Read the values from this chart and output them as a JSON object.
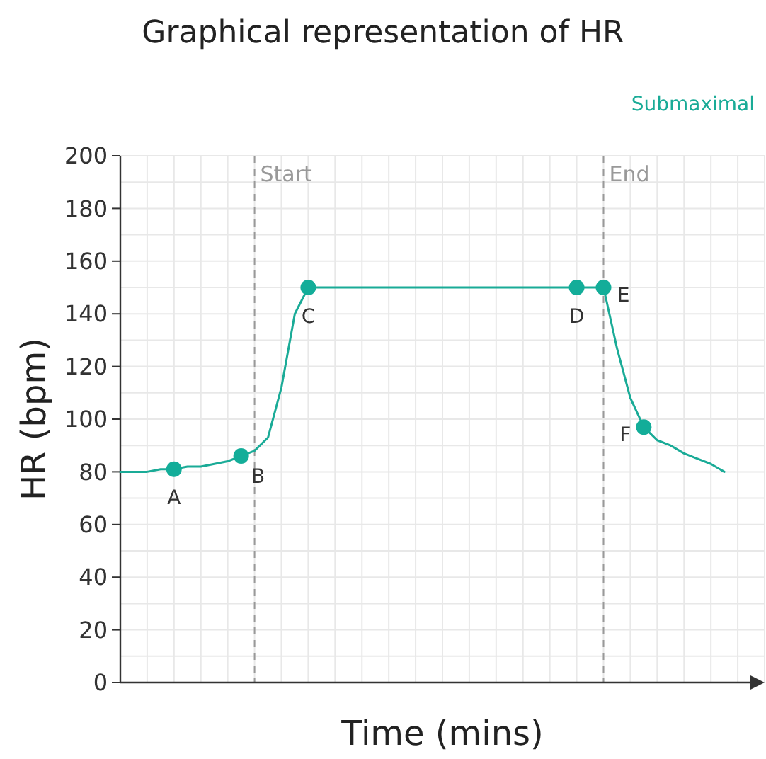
{
  "chart_data": {
    "type": "line",
    "title": "Graphical representation of HR",
    "xlabel": "Time (mins)",
    "ylabel": "HR (bpm)",
    "categories": [
      null,
      null,
      null,
      null,
      null,
      null,
      null,
      null,
      null,
      null,
      null,
      null,
      null,
      null,
      null,
      null,
      null,
      null,
      null,
      null,
      null,
      null,
      null,
      null,
      null,
      null,
      null,
      null,
      null,
      null,
      null,
      null,
      null,
      null,
      null,
      null,
      null,
      null,
      null,
      null,
      null,
      null,
      null,
      null,
      null,
      null,
      null,
      null,
      null
    ],
    "ylim": [
      0,
      200
    ],
    "yticks": [
      0,
      {
        "value": 10,
        "label": null
      },
      20,
      {
        "value": 30,
        "label": null
      },
      40,
      {
        "value": 50,
        "label": null
      },
      60,
      {
        "value": 70,
        "label": null
      },
      80,
      {
        "value": 90,
        "label": null
      },
      100,
      {
        "value": 110,
        "label": null
      },
      120,
      {
        "value": 130,
        "label": null
      },
      140,
      {
        "value": 150,
        "label": null
      },
      160,
      {
        "value": 170,
        "label": null
      },
      180,
      {
        "value": 190,
        "label": null
      },
      200
    ],
    "grid": true,
    "marker": "none",
    "line_style": "solid",
    "series": [
      {
        "name": "Submaximal",
        "color": "#1aab97",
        "values": [
          80,
          80,
          80,
          81,
          81,
          82,
          82,
          83,
          84,
          86,
          88,
          93,
          112,
          140,
          150,
          150,
          150,
          150,
          150,
          150,
          150,
          150,
          150,
          150,
          150,
          150,
          150,
          150,
          150,
          150,
          150,
          150,
          150,
          150,
          150,
          150,
          150,
          127,
          108,
          97,
          92,
          90,
          87,
          85,
          83,
          80,
          null,
          null,
          null
        ]
      },
      {
        "type": "scatter",
        "marker": "circle",
        "color": "#13ad99",
        "values": [
          null,
          null,
          null,
          null,
          81,
          null,
          null,
          null,
          null,
          86,
          null,
          null,
          null,
          null,
          150,
          null,
          null,
          null,
          null,
          null,
          null,
          null,
          null,
          null,
          null,
          null,
          null,
          null,
          null,
          null,
          null,
          null,
          null,
          null,
          150,
          null,
          150,
          null,
          null,
          97,
          null,
          null,
          null,
          null,
          null,
          null,
          null,
          null,
          null
        ]
      }
    ],
    "ref_lines": [
      {
        "axis": "x",
        "label": "Start",
        "color": "#999999",
        "line_style": "dashed"
      },
      {
        "axis": "x",
        "label": "End",
        "color": "#999999",
        "line_style": "dashed"
      }
    ],
    "annotations": [
      "A",
      "B",
      "C",
      "D",
      "E",
      "F"
    ]
  }
}
